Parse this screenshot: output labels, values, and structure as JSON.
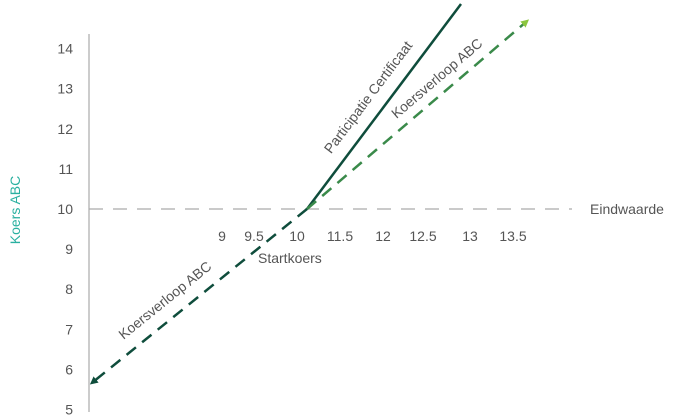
{
  "chart_data": {
    "type": "line",
    "title": "",
    "ylabel": "Koers ABC",
    "ylim": [
      5,
      14
    ],
    "yticks": [
      "5",
      "6",
      "7",
      "8",
      "9",
      "10",
      "11",
      "12",
      "13",
      "14"
    ],
    "xticks": [
      "9",
      "9.5",
      "10",
      "11.5",
      "12",
      "12.5",
      "13",
      "13.5"
    ],
    "xtick_values": [
      9,
      9.5,
      10,
      11.5,
      12,
      12.5,
      13,
      13.5
    ],
    "reference_line": {
      "y": 10,
      "label": "Eindwaarde",
      "style": "dashed"
    },
    "start_label": "Startkoers",
    "series": [
      {
        "name": "Participatie Certificaat",
        "color": "#0f4d3c",
        "style": "solid",
        "points": [
          [
            10.0,
            10
          ],
          [
            13.6,
            15.2
          ]
        ]
      },
      {
        "name": "Koersverloop ABC",
        "color": "#3a8a4a",
        "style": "dashed",
        "arrow_color": "#8cc63f",
        "points": [
          [
            10.0,
            10
          ],
          [
            14.2,
            14.6
          ]
        ]
      },
      {
        "name": "Koersverloop ABC",
        "color": "#0f4d3c",
        "style": "dashed",
        "arrow_color": "#0f4d3c",
        "points": [
          [
            10.0,
            10
          ],
          [
            5.8,
            5.65
          ]
        ]
      }
    ],
    "colors": {
      "ylabel": "#2ab0a0",
      "axis": "#999999",
      "reference": "#aaaaaa"
    }
  }
}
